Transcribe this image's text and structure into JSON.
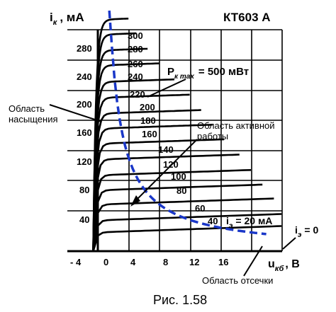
{
  "title": "КТ603 А",
  "y_axis": {
    "symbol": "i",
    "subscript": "к",
    "unit": ", мА"
  },
  "x_axis": {
    "symbol": "u",
    "subscript": "кб",
    "unit": ", В"
  },
  "pmax": {
    "symbol": "P",
    "subscript": "к max",
    "value": "= 500 мВт"
  },
  "regions": {
    "saturation_line1": "Область",
    "saturation_line2": "насыщения",
    "active_line1": "Область активной",
    "active_line2": "работы",
    "cutoff": "Область отсечки"
  },
  "emitter_label": {
    "symbol": "i",
    "subscript": "э",
    "value": "= 20 мА"
  },
  "zero_label": {
    "symbol": "i",
    "subscript": "э",
    "value": "= 0"
  },
  "figure_caption": "Рис. 1.58",
  "chart_data": {
    "type": "line",
    "title": "КТ603 А",
    "xlabel": "uкб, В",
    "ylabel": "iк , мА",
    "xlim": [
      -4,
      24
    ],
    "ylim": [
      0,
      320
    ],
    "x_ticks": [
      "- 4",
      "0",
      "4",
      "8",
      "12",
      "16"
    ],
    "y_ticks": [
      "40",
      "80",
      "120",
      "160",
      "200",
      "240",
      "280"
    ],
    "grid": true,
    "series": [
      {
        "name": "300",
        "plateau": 308
      },
      {
        "name": "280",
        "plateau": 288
      },
      {
        "name": "260",
        "plateau": 267
      },
      {
        "name": "240",
        "plateau": 247
      },
      {
        "name": "220",
        "plateau": 225
      },
      {
        "name": "200",
        "plateau": 204
      },
      {
        "name": "180",
        "plateau": 183
      },
      {
        "name": "160",
        "plateau": 163
      },
      {
        "name": "140",
        "plateau": 143
      },
      {
        "name": "120",
        "plateau": 122
      },
      {
        "name": "100",
        "plateau": 101
      },
      {
        "name": "80",
        "plateau": 81
      },
      {
        "name": "60",
        "plateau": 62
      },
      {
        "name": "40",
        "plateau": 41
      },
      {
        "name": "iэ = 20 мА",
        "plateau": 25
      },
      {
        "name": "iэ = 0",
        "plateau": 0
      }
    ],
    "pmax_hyperbola_mW": 500
  }
}
